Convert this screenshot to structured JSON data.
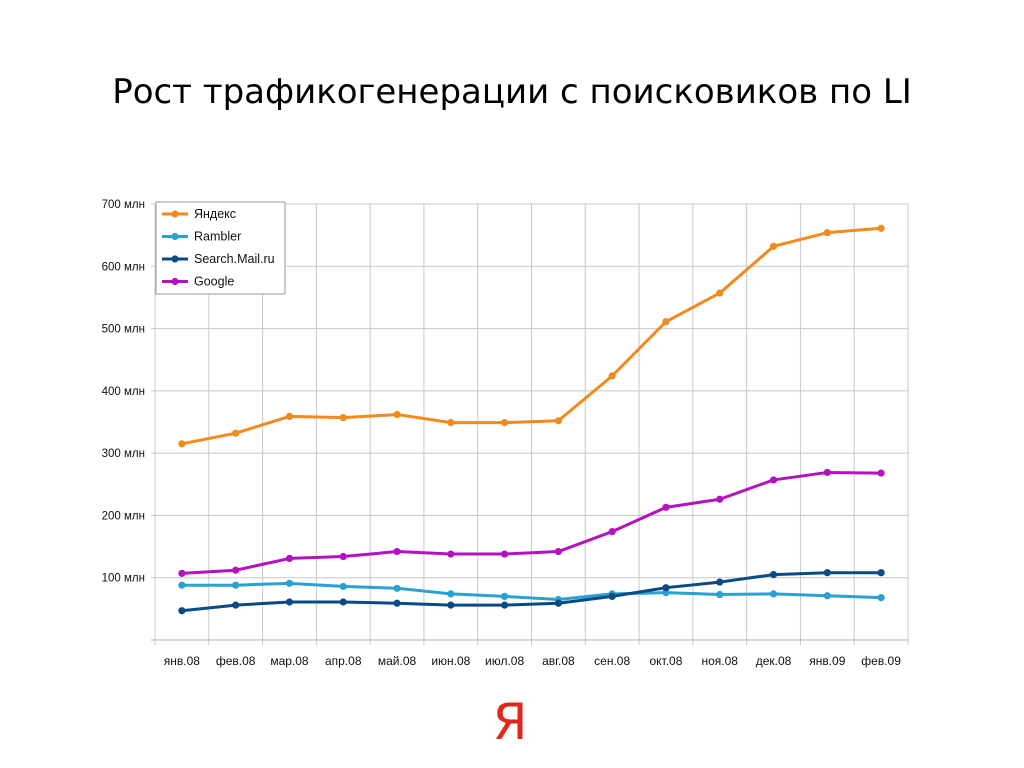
{
  "slide": {
    "title": "Рост трафикогенерации с поисковиков по LI",
    "logo_text": "Я"
  },
  "chart_data": {
    "type": "line",
    "title": "",
    "xlabel": "",
    "ylabel": "",
    "ylim": [
      0,
      700
    ],
    "y_ticks": [
      100,
      200,
      300,
      400,
      500,
      600,
      700
    ],
    "y_tick_labels": [
      "100 млн",
      "200 млн",
      "300 млн",
      "400 млн",
      "500 млн",
      "600 млн",
      "700 млн"
    ],
    "grid": true,
    "legend_position": "top-left",
    "categories": [
      "янв.08",
      "фев.08",
      "мар.08",
      "апр.08",
      "май.08",
      "июн.08",
      "июл.08",
      "авг.08",
      "сен.08",
      "окт.08",
      "ноя.08",
      "дек.08",
      "янв.09",
      "фев.09"
    ],
    "series": [
      {
        "name": "Яндекс",
        "color": "#f28a1d",
        "values": [
          315,
          332,
          359,
          357,
          362,
          349,
          349,
          352,
          424,
          511,
          557,
          632,
          654,
          661
        ]
      },
      {
        "name": "Rambler",
        "color": "#2aa1cf",
        "values": [
          88,
          88,
          91,
          86,
          83,
          74,
          70,
          65,
          74,
          76,
          73,
          74,
          71,
          68
        ]
      },
      {
        "name": "Search.Mail.ru",
        "color": "#0b4a84",
        "values": [
          47,
          56,
          61,
          61,
          59,
          56,
          56,
          59,
          70,
          84,
          93,
          105,
          108,
          108
        ]
      },
      {
        "name": "Google",
        "color": "#b312c0",
        "values": [
          107,
          112,
          131,
          134,
          142,
          138,
          138,
          142,
          174,
          213,
          226,
          257,
          269,
          268
        ]
      }
    ]
  }
}
